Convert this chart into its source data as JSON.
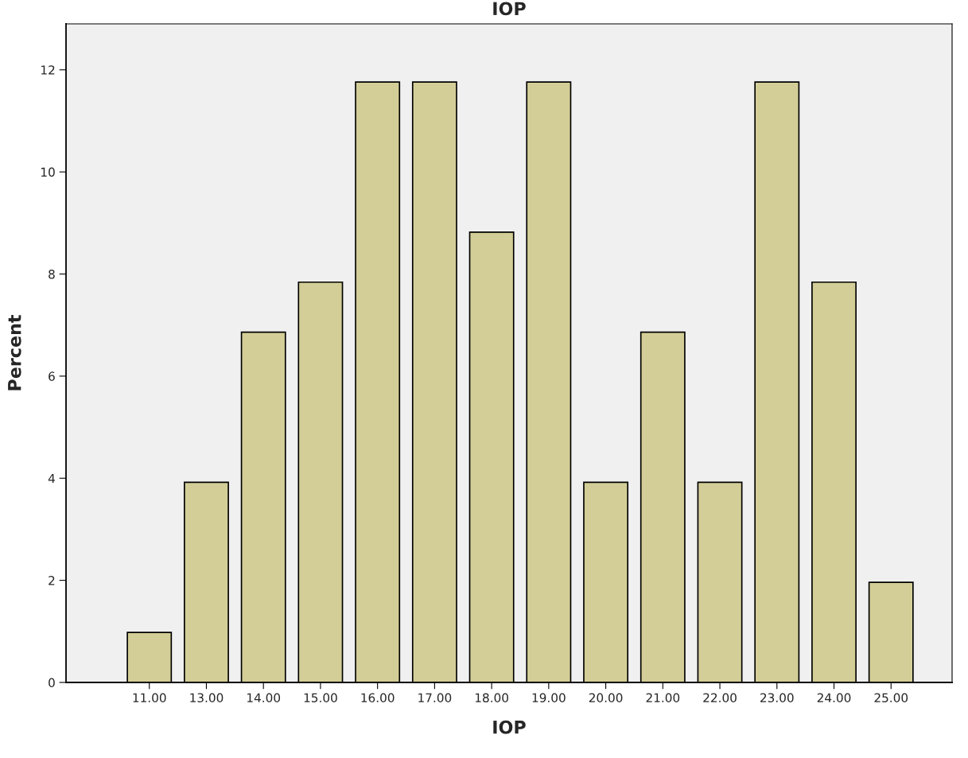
{
  "chart_data": {
    "type": "bar",
    "title": "IOP",
    "xlabel": "IOP",
    "ylabel": "Percent",
    "categories": [
      "11.00",
      "13.00",
      "14.00",
      "15.00",
      "16.00",
      "17.00",
      "18.00",
      "19.00",
      "20.00",
      "21.00",
      "22.00",
      "23.00",
      "24.00",
      "25.00"
    ],
    "values": [
      0.98,
      3.92,
      6.86,
      7.84,
      11.76,
      11.76,
      8.82,
      11.76,
      3.92,
      6.86,
      3.92,
      11.76,
      7.84,
      1.96
    ],
    "color": "#d3ce97",
    "ylim": [
      0,
      12.9
    ],
    "yticks": [
      0,
      2,
      4,
      6,
      8,
      10,
      12
    ],
    "grid": false,
    "legend": false
  }
}
